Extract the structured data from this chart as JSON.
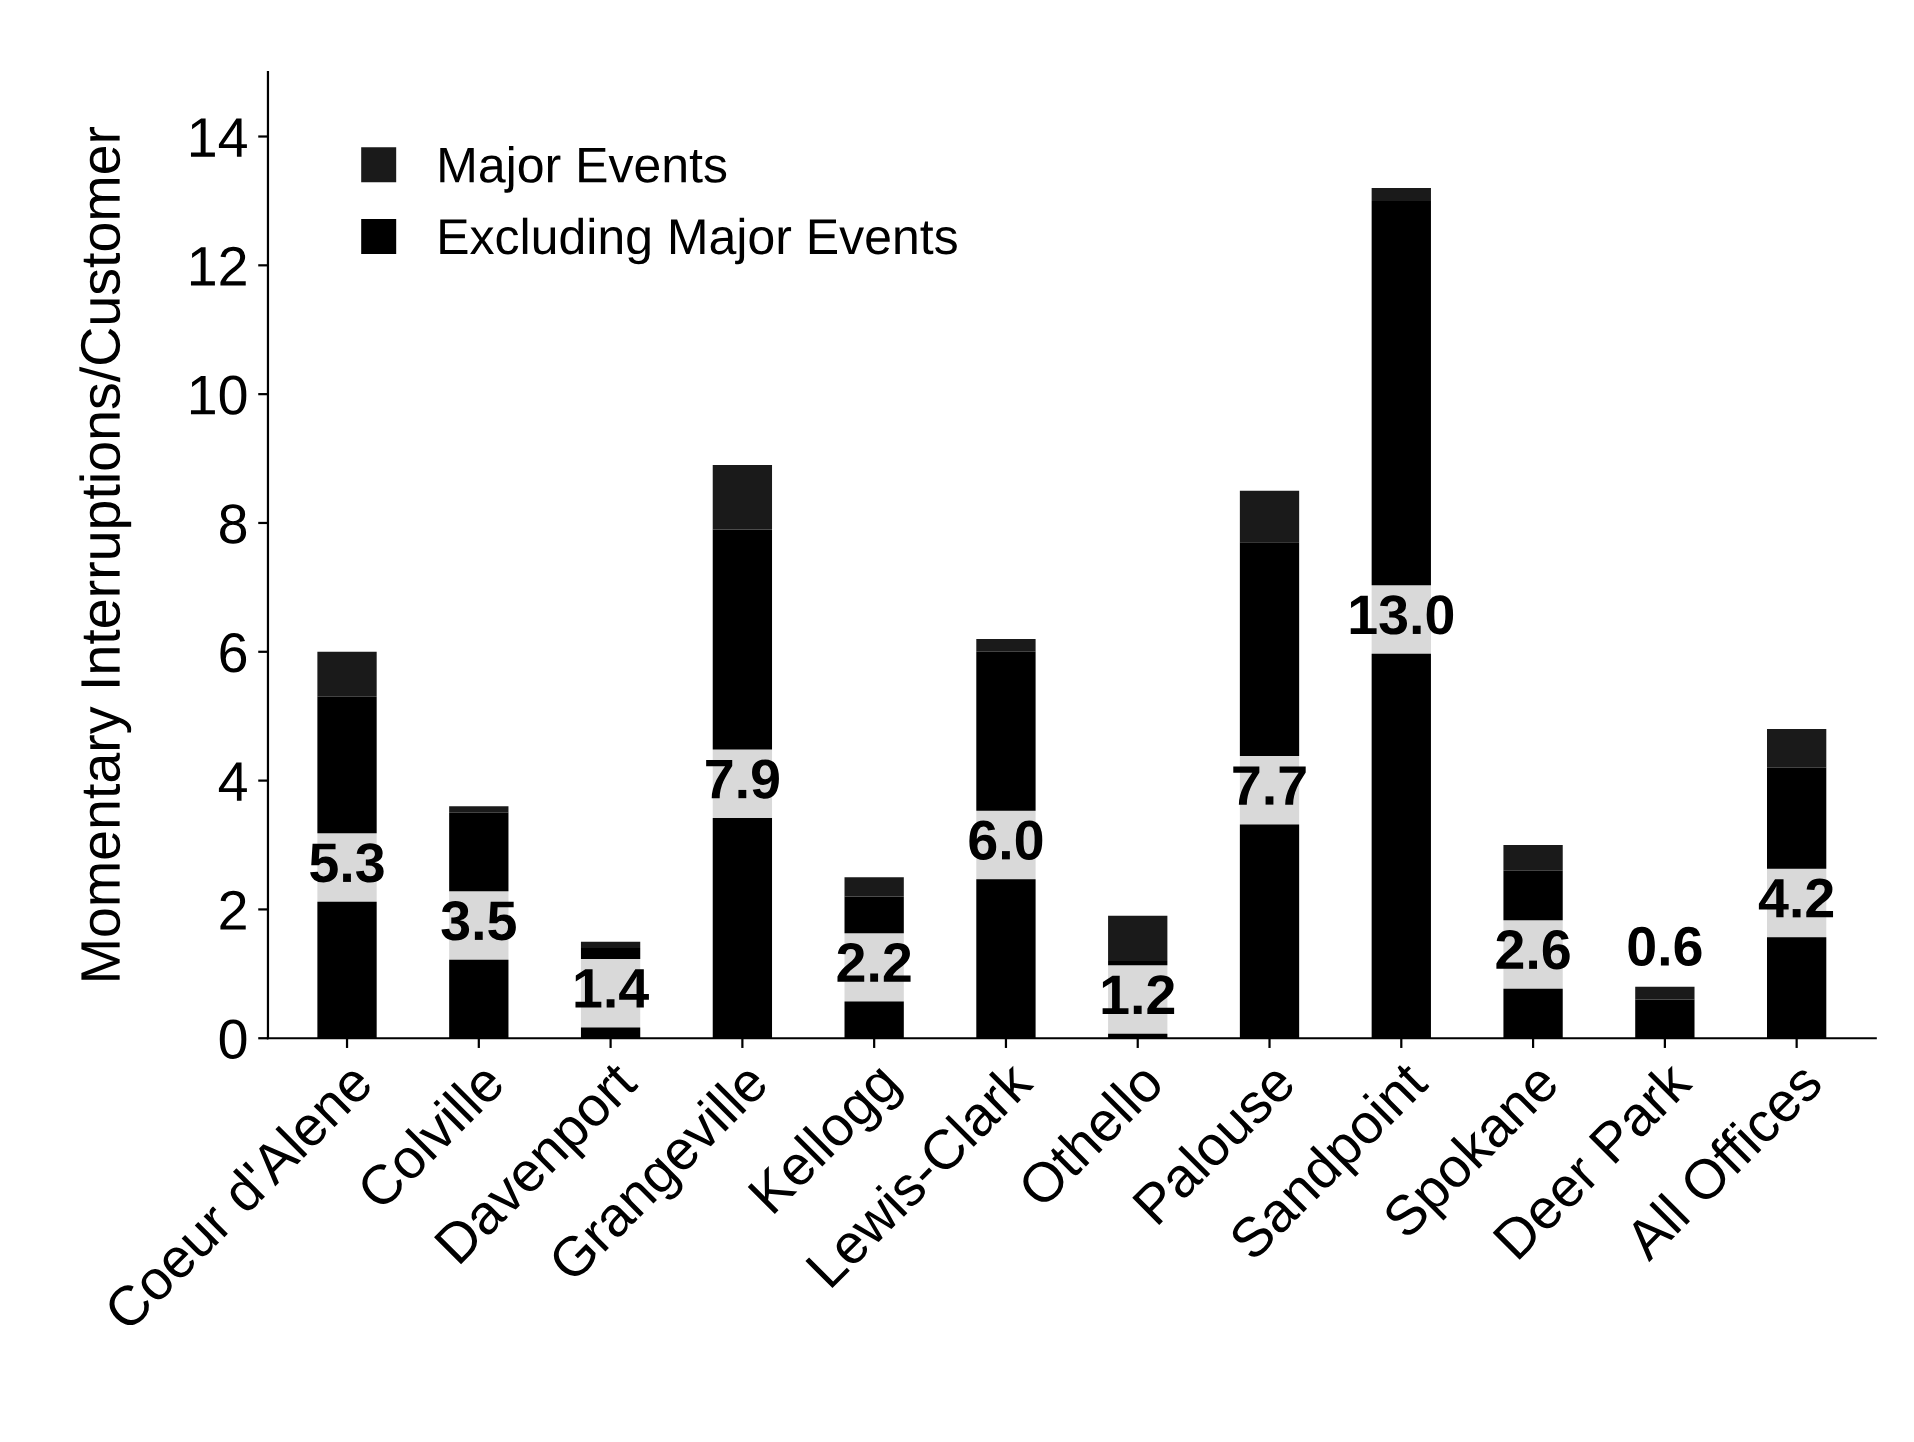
{
  "chart_data": {
    "type": "bar",
    "stacked": true,
    "ylabel": "Momentary Interruptions/Customer",
    "categories": [
      "Coeur d'Alene",
      "Colville",
      "Davenport",
      "Grangeville",
      "Kellogg",
      "Lewis-Clark",
      "Othello",
      "Palouse",
      "Sandpoint",
      "Spokane",
      "Deer Park",
      "All Offices"
    ],
    "series": [
      {
        "name": "Excluding Major Events",
        "color": "#000000",
        "values": [
          5.3,
          3.5,
          1.4,
          7.9,
          2.2,
          6.0,
          1.2,
          7.7,
          13.0,
          2.6,
          0.6,
          4.2
        ],
        "value_labels": [
          "5.3",
          "3.5",
          "1.4",
          "7.9",
          "2.2",
          "6.0",
          "1.2",
          "7.7",
          "13.0",
          "2.6",
          "0.6",
          "4.2"
        ]
      },
      {
        "name": "Major Events",
        "color": "#1a1a1a",
        "values": [
          0.7,
          0.1,
          0.1,
          1.0,
          0.3,
          0.2,
          0.7,
          0.8,
          0.2,
          0.4,
          0.2,
          0.6
        ]
      }
    ],
    "ylim": [
      0,
      15
    ],
    "yticks": [
      0,
      2,
      4,
      6,
      8,
      10,
      12,
      14
    ],
    "grid": false,
    "legend": "top left"
  }
}
